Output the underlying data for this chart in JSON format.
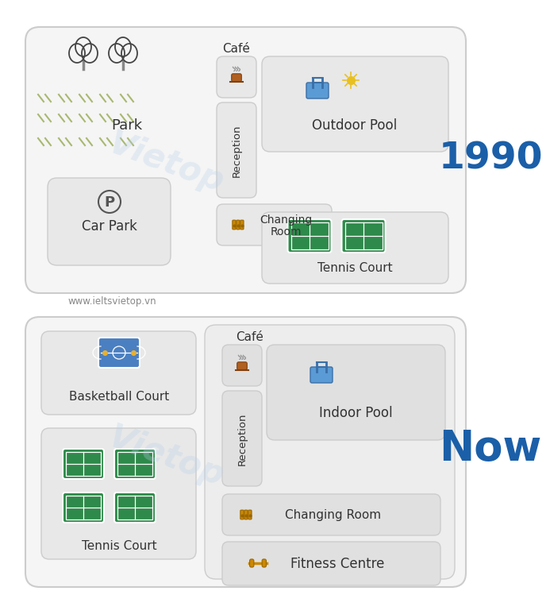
{
  "fig_width": 6.4,
  "fig_height": 7.54,
  "bg_color": "#ffffff",
  "box_fill_light": "#ebebeb",
  "box_fill_mid": "#e0e0e0",
  "box_edge": "#cccccc",
  "year_1990": "1990",
  "year_now": "Now",
  "year_color": "#1a5fa8",
  "watermark": "Vietop",
  "website": "www.ieltsvietop.vn",
  "grass_color": "#a8b870",
  "tree_color": "#444444",
  "green_court": "#2e8a4a",
  "court_line": "#ffffff",
  "blue_court": "#4a7fc1",
  "pool_blue": "#5b9bd5",
  "pool_dark": "#3a6fa8",
  "orange_icon": "#cc8800",
  "coffee_brown": "#b06020",
  "sun_yellow": "#e8c020"
}
